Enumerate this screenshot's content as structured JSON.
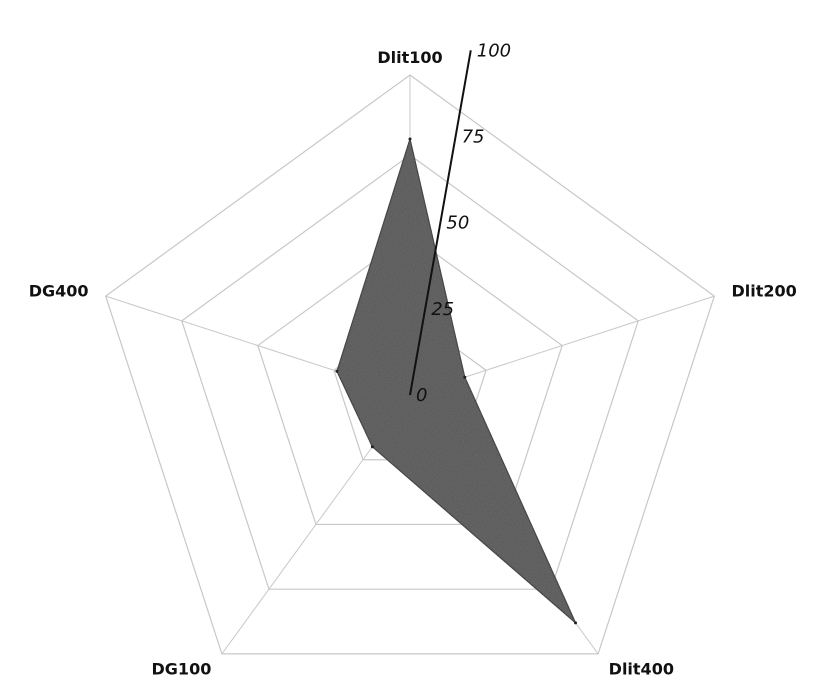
{
  "chart_data": {
    "type": "radar",
    "categories": [
      "Dlit100",
      "Dlit200",
      "Dlit400",
      "DG100",
      "DG400"
    ],
    "series": [
      {
        "values": [
          80,
          18,
          88,
          20,
          24
        ]
      }
    ],
    "rlim": [
      0,
      100
    ],
    "ticks": [
      "0",
      "25",
      "50",
      "75",
      "100"
    ],
    "grid": true,
    "colors": {
      "fill": "#555555",
      "edge": "#222222",
      "grid": "#c8c8c8",
      "axis": "#111111"
    }
  }
}
